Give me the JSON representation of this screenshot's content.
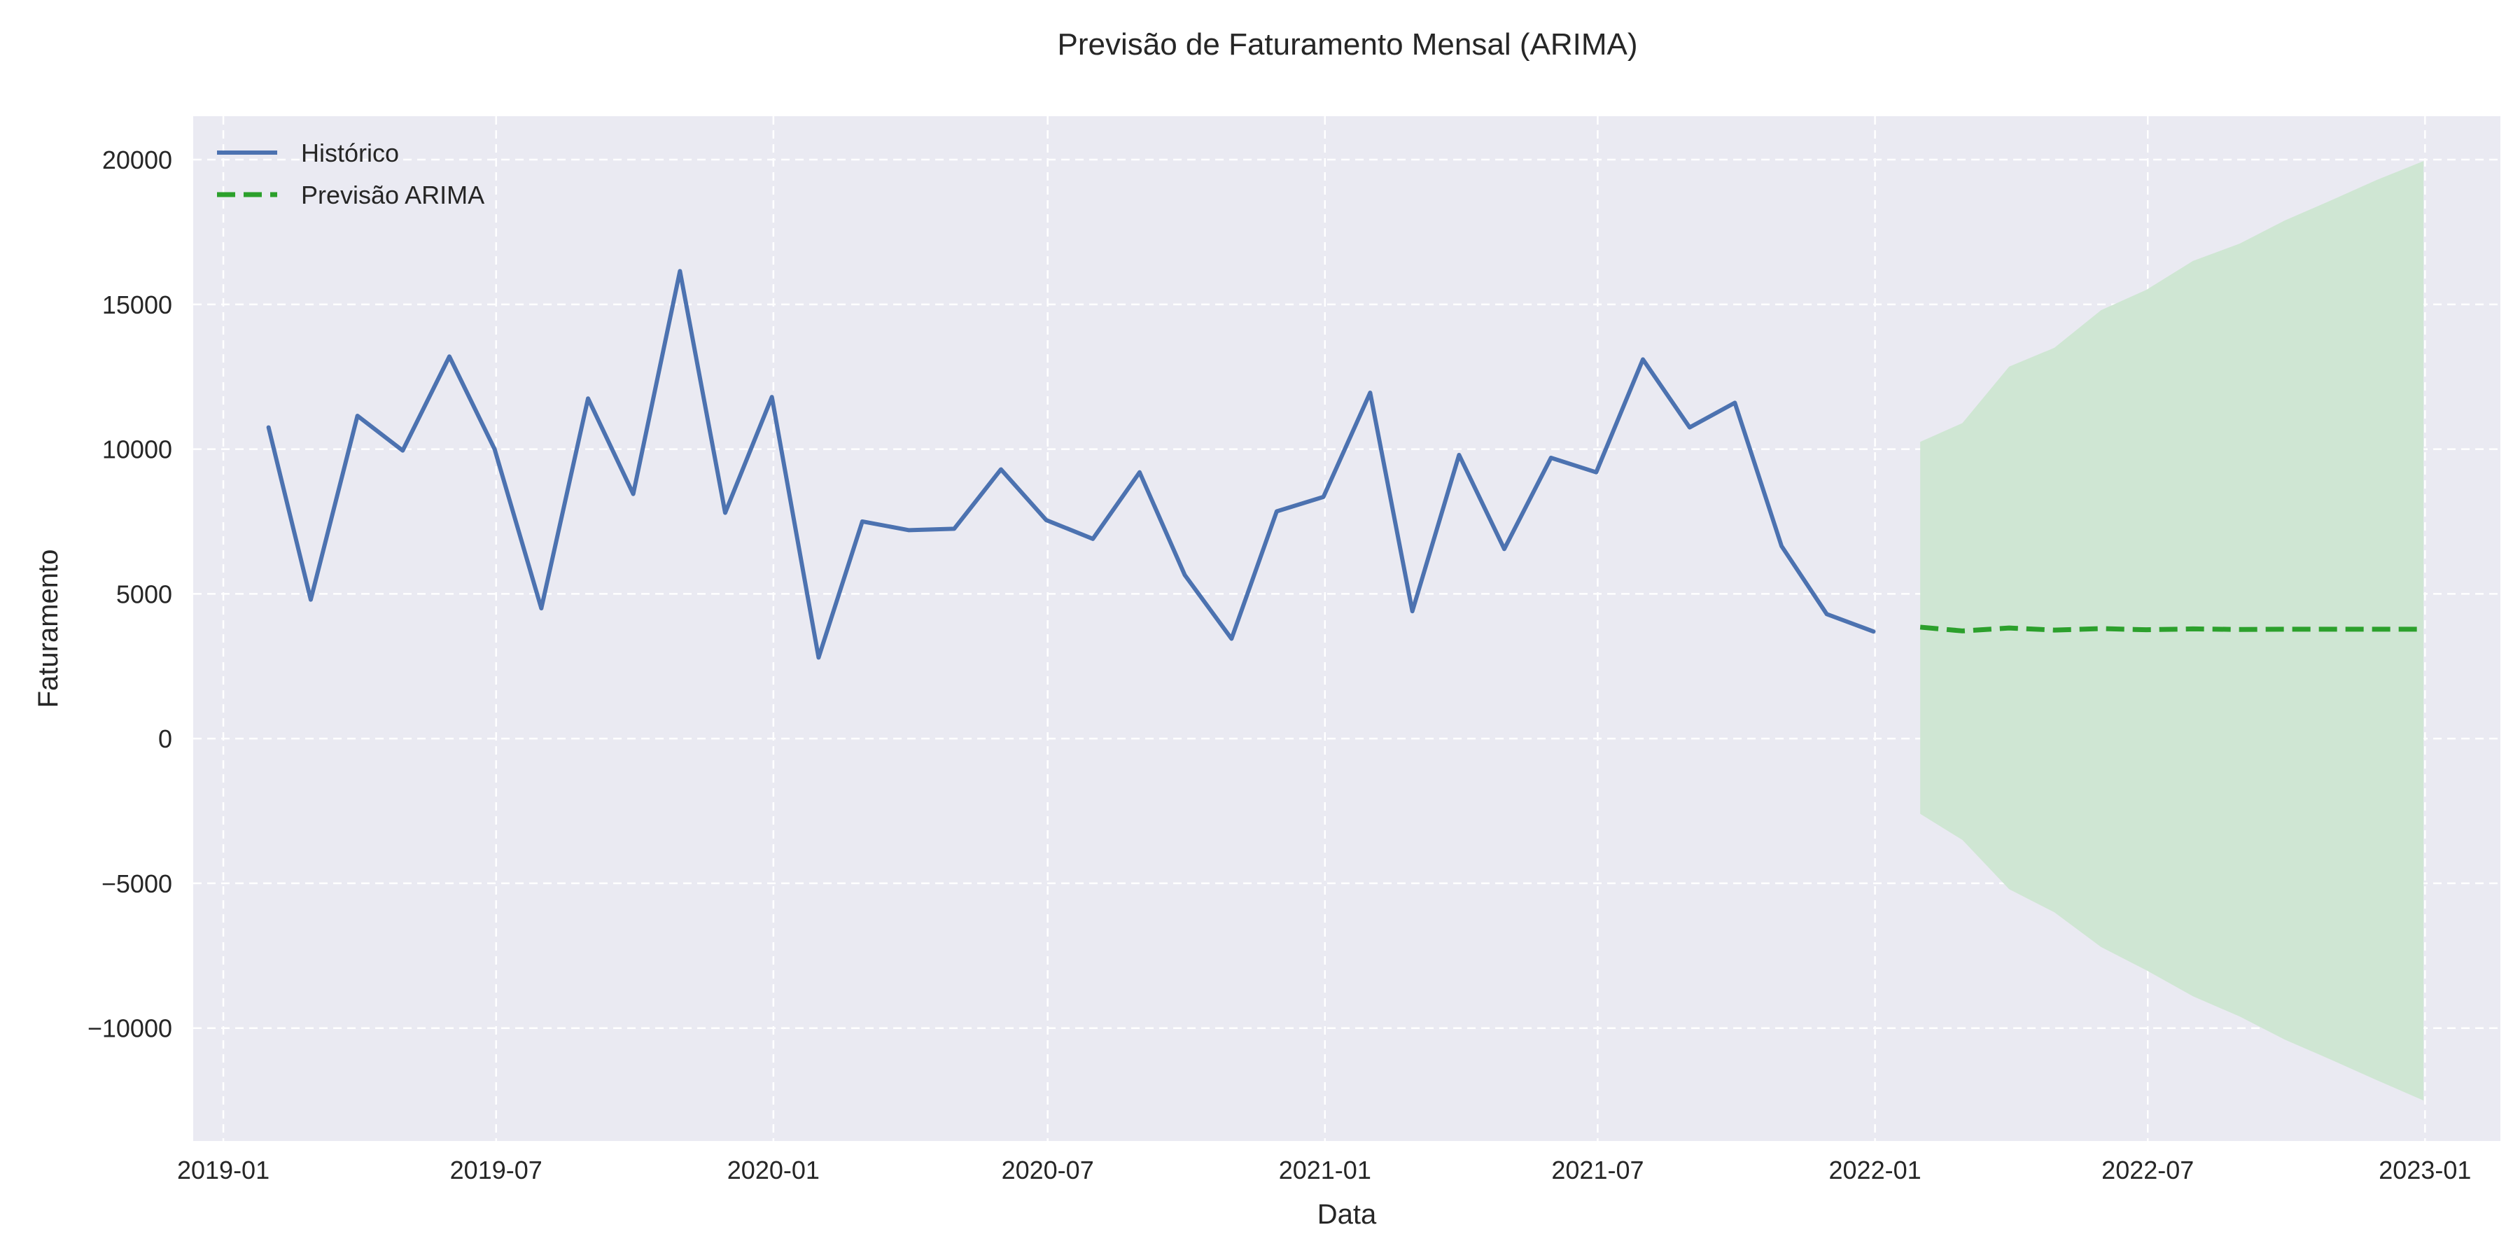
{
  "chart_data": {
    "type": "line",
    "title": "Previsão de Faturamento Mensal (ARIMA)",
    "xlabel": "Data",
    "ylabel": "Faturamento",
    "xlim": [
      "2018-12-12",
      "2023-02-20"
    ],
    "ylim": [
      -13900,
      21500
    ],
    "y_ticks": [
      -10000,
      -5000,
      0,
      5000,
      10000,
      15000,
      20000
    ],
    "y_tick_labels": [
      "−10000",
      "−5000",
      "0",
      "5000",
      "10000",
      "15000",
      "20000"
    ],
    "x_ticks": [
      "2019-01-01",
      "2019-07-01",
      "2020-01-01",
      "2020-07-01",
      "2021-01-01",
      "2021-07-01",
      "2022-01-01",
      "2022-07-01",
      "2023-01-01"
    ],
    "x_tick_labels": [
      "2019-01",
      "2019-07",
      "2020-01",
      "2020-07",
      "2021-01",
      "2021-07",
      "2022-01",
      "2022-07",
      "2023-01"
    ],
    "grid": true,
    "legend_position": "top-left",
    "background_color": "#eaeaf2",
    "series": [
      {
        "name": "Histórico",
        "style": "solid",
        "color": "#4c72b0",
        "x": [
          "2019-01-31",
          "2019-02-28",
          "2019-03-31",
          "2019-04-30",
          "2019-05-31",
          "2019-06-30",
          "2019-07-31",
          "2019-08-31",
          "2019-09-30",
          "2019-10-31",
          "2019-11-30",
          "2019-12-31",
          "2020-01-31",
          "2020-02-29",
          "2020-03-31",
          "2020-04-30",
          "2020-05-31",
          "2020-06-30",
          "2020-07-31",
          "2020-08-31",
          "2020-09-30",
          "2020-10-31",
          "2020-11-30",
          "2020-12-31",
          "2021-01-31",
          "2021-02-28",
          "2021-03-31",
          "2021-04-30",
          "2021-05-31",
          "2021-06-30",
          "2021-07-31",
          "2021-08-31",
          "2021-09-30",
          "2021-10-31",
          "2021-11-30",
          "2021-12-31"
        ],
        "values": [
          10750,
          4800,
          11150,
          9950,
          13200,
          10000,
          4500,
          11750,
          8450,
          16150,
          7800,
          11800,
          2800,
          7500,
          7200,
          7250,
          9300,
          7550,
          6900,
          9200,
          5650,
          3450,
          7850,
          8350,
          11950,
          4400,
          9800,
          6550,
          9700,
          9200,
          13100,
          10750,
          11600,
          6650,
          4300,
          3700
        ]
      },
      {
        "name": "Previsão ARIMA",
        "style": "dashed",
        "color": "#2ca02c",
        "x": [
          "2022-01-31",
          "2022-02-28",
          "2022-03-31",
          "2022-04-30",
          "2022-05-31",
          "2022-06-30",
          "2022-07-31",
          "2022-08-31",
          "2022-09-30",
          "2022-10-31",
          "2022-11-30",
          "2022-12-31"
        ],
        "values": [
          3850,
          3720,
          3820,
          3750,
          3800,
          3760,
          3790,
          3770,
          3780,
          3780,
          3780,
          3780
        ]
      }
    ],
    "confidence_interval": {
      "color": "#cfe6d3",
      "x": [
        "2022-01-31",
        "2022-02-28",
        "2022-03-31",
        "2022-04-30",
        "2022-05-31",
        "2022-06-30",
        "2022-07-31",
        "2022-08-31",
        "2022-09-30",
        "2022-10-31",
        "2022-11-30",
        "2022-12-31"
      ],
      "lower": [
        -2600,
        -3500,
        -5200,
        -6000,
        -7200,
        -8000,
        -8900,
        -9600,
        -10400,
        -11100,
        -11800,
        -12500
      ],
      "upper": [
        10250,
        10900,
        12850,
        13500,
        14800,
        15500,
        16500,
        17100,
        17900,
        18600,
        19300,
        19950
      ]
    }
  }
}
